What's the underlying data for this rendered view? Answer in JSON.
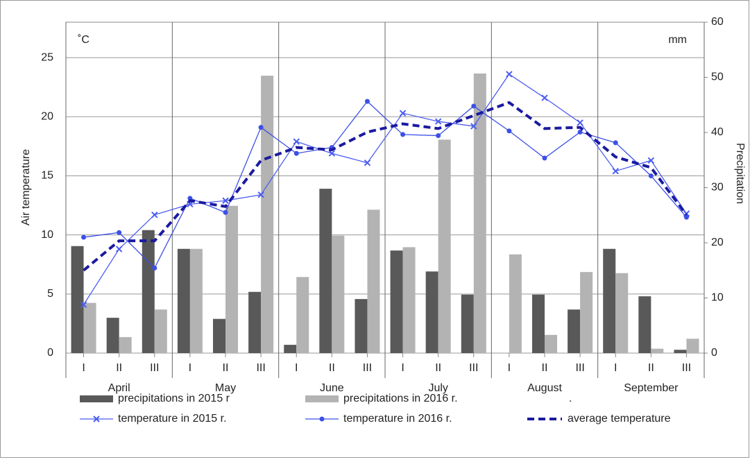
{
  "chart_data": {
    "type": "bar",
    "y_label": "Air temperature",
    "y2_label": "Precipitation",
    "y_unit": "˚C",
    "y2_unit": "mm",
    "legend_note": ".",
    "categories": [
      "I",
      "II",
      "III",
      "I",
      "II",
      "III",
      "I",
      "II",
      "III",
      "I",
      "II",
      "III",
      "I",
      "II",
      "III",
      "I",
      "II",
      "III"
    ],
    "groups": [
      "April",
      "May",
      "June",
      "July",
      "August",
      "September"
    ],
    "ylim": [
      0,
      28
    ],
    "yticks": [
      0,
      5,
      10,
      15,
      20,
      25
    ],
    "y2lim": [
      0,
      60
    ],
    "y2ticks": [
      0,
      10,
      20,
      30,
      40,
      50,
      60
    ],
    "grid": true,
    "series": [
      {
        "name": "precipitations in 2015 r",
        "type": "bar",
        "axis": "y2",
        "color": "#595959",
        "values": [
          19.4,
          6.4,
          22.3,
          18.9,
          6.2,
          11.1,
          1.5,
          29.8,
          9.8,
          18.6,
          14.8,
          10.6,
          0,
          10.6,
          7.9,
          18.9,
          10.3,
          0.6
        ]
      },
      {
        "name": "precipitations in 2016 r.",
        "type": "bar",
        "axis": "y2",
        "color": "#b3b3b3",
        "values": [
          9.1,
          2.9,
          7.9,
          18.9,
          26.7,
          50.3,
          13.8,
          21.3,
          26.0,
          19.2,
          38.7,
          50.7,
          17.9,
          3.3,
          14.7,
          14.5,
          0.8,
          2.6
        ]
      },
      {
        "name": "temperature in 2015 r.",
        "type": "line",
        "marker": "x",
        "color": "#4a5cf0",
        "values": [
          4.1,
          8.8,
          11.7,
          12.6,
          12.9,
          13.4,
          17.9,
          16.9,
          16.1,
          20.3,
          19.6,
          19.2,
          23.6,
          21.6,
          19.5,
          15.4,
          16.3,
          11.8
        ]
      },
      {
        "name": "temperature in 2016 r.",
        "type": "line",
        "marker": "circle",
        "color": "#3c50e6",
        "values": [
          9.8,
          10.2,
          7.2,
          13.1,
          11.9,
          19.1,
          16.9,
          17.4,
          21.3,
          18.5,
          18.4,
          20.9,
          18.8,
          16.5,
          18.7,
          17.8,
          15.0,
          11.5
        ]
      },
      {
        "name": "average temperature",
        "type": "line",
        "dashed": true,
        "color": "#1a1aa0",
        "values": [
          7.0,
          9.5,
          9.5,
          12.9,
          12.4,
          16.3,
          17.4,
          17.2,
          18.7,
          19.4,
          19.0,
          20.1,
          21.2,
          19.0,
          19.1,
          16.6,
          15.7,
          11.7
        ]
      }
    ]
  }
}
